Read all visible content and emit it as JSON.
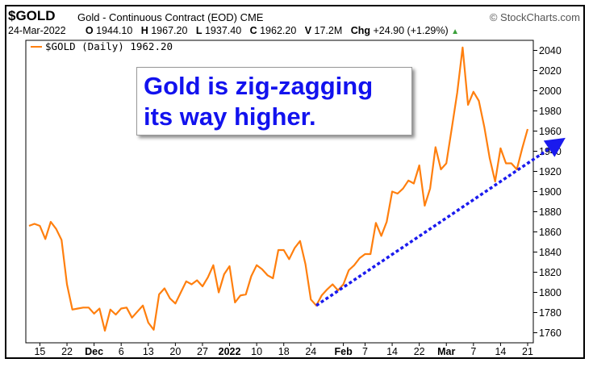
{
  "header": {
    "symbol": "$GOLD",
    "description": "Gold - Continuous Contract (EOD) CME",
    "source": "© StockCharts.com",
    "date": "24-Mar-2022",
    "open_label": "O",
    "open": "1944.10",
    "high_label": "H",
    "high": "1967.20",
    "low_label": "L",
    "low": "1937.40",
    "close_label": "C",
    "close": "1962.20",
    "volume_label": "V",
    "volume": "17.2M",
    "change_label": "Chg",
    "change": "+24.90 (+1.29%)"
  },
  "annotation": {
    "line1": "Gold is zig-zagging",
    "line2": "its way higher."
  },
  "colors": {
    "price": "#ff7f0e",
    "trend": "#1a1aee",
    "annotation": "#1212ee"
  },
  "chart_data": {
    "type": "line",
    "legend": "$GOLD (Daily) 1962.20",
    "ylim": [
      1750,
      2050
    ],
    "yticks": [
      1760,
      1780,
      1800,
      1820,
      1840,
      1860,
      1880,
      1900,
      1920,
      1940,
      1960,
      1980,
      2000,
      2020,
      2040
    ],
    "xtick_labels": [
      {
        "label": "15",
        "i": 2
      },
      {
        "label": "22",
        "i": 7
      },
      {
        "label": "Dec",
        "i": 12,
        "bold": true
      },
      {
        "label": "6",
        "i": 17
      },
      {
        "label": "13",
        "i": 22
      },
      {
        "label": "20",
        "i": 27
      },
      {
        "label": "27",
        "i": 32
      },
      {
        "label": "2022",
        "i": 37,
        "bold": true
      },
      {
        "label": "10",
        "i": 42
      },
      {
        "label": "18",
        "i": 47
      },
      {
        "label": "24",
        "i": 52
      },
      {
        "label": "Feb",
        "i": 58,
        "bold": true
      },
      {
        "label": "7",
        "i": 62
      },
      {
        "label": "14",
        "i": 67
      },
      {
        "label": "22",
        "i": 72
      },
      {
        "label": "Mar",
        "i": 77,
        "bold": true
      },
      {
        "label": "7",
        "i": 82
      },
      {
        "label": "14",
        "i": 87
      },
      {
        "label": "21",
        "i": 92
      }
    ],
    "series": [
      {
        "values": [
          1866,
          1868,
          1866,
          1853,
          1870,
          1863,
          1852,
          1808,
          1783,
          1784,
          1785,
          1785,
          1779,
          1784,
          1762,
          1783,
          1778,
          1784,
          1785,
          1775,
          1781,
          1787,
          1770,
          1763,
          1798,
          1804,
          1794,
          1789,
          1800,
          1811,
          1808,
          1812,
          1806,
          1815,
          1827,
          1800,
          1818,
          1826,
          1790,
          1797,
          1798,
          1816,
          1827,
          1823,
          1817,
          1814,
          1842,
          1842,
          1833,
          1844,
          1851,
          1828,
          1793,
          1787,
          1797,
          1803,
          1808,
          1802,
          1808,
          1822,
          1827,
          1834,
          1838,
          1838,
          1869,
          1856,
          1870,
          1900,
          1898,
          1903,
          1911,
          1908,
          1926,
          1886,
          1903,
          1944,
          1922,
          1928,
          1963,
          1998,
          2043,
          1986,
          1999,
          1990,
          1964,
          1933,
          1910,
          1943,
          1928,
          1928,
          1922,
          1943,
          1962
        ]
      }
    ],
    "trendline": {
      "from": {
        "i": 53,
        "y": 1787
      },
      "to": {
        "i": 95,
        "y": 1943
      }
    }
  }
}
